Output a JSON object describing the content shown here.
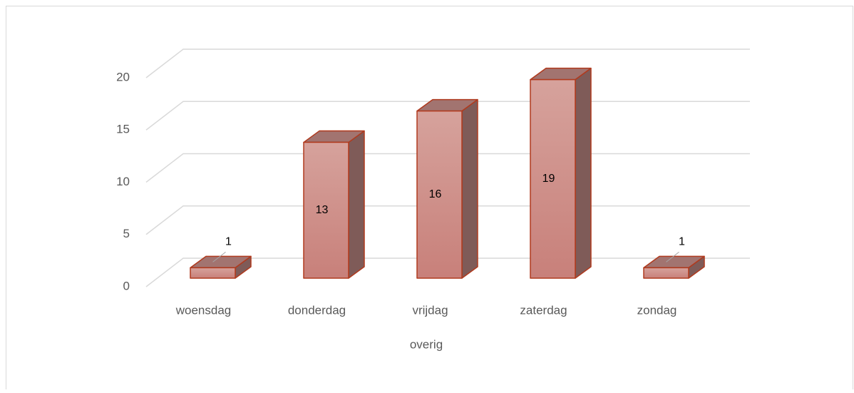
{
  "chart_data": {
    "type": "bar3d",
    "x_label": "overig",
    "categories": [
      "woensdag",
      "donderdag",
      "vrijdag",
      "zaterdag",
      "zondag"
    ],
    "values": [
      1,
      13,
      16,
      19,
      1
    ],
    "color": "#d29690",
    "ylim": [
      0,
      20
    ],
    "yticks": [
      0,
      5,
      10,
      15,
      20
    ],
    "grid": true
  }
}
